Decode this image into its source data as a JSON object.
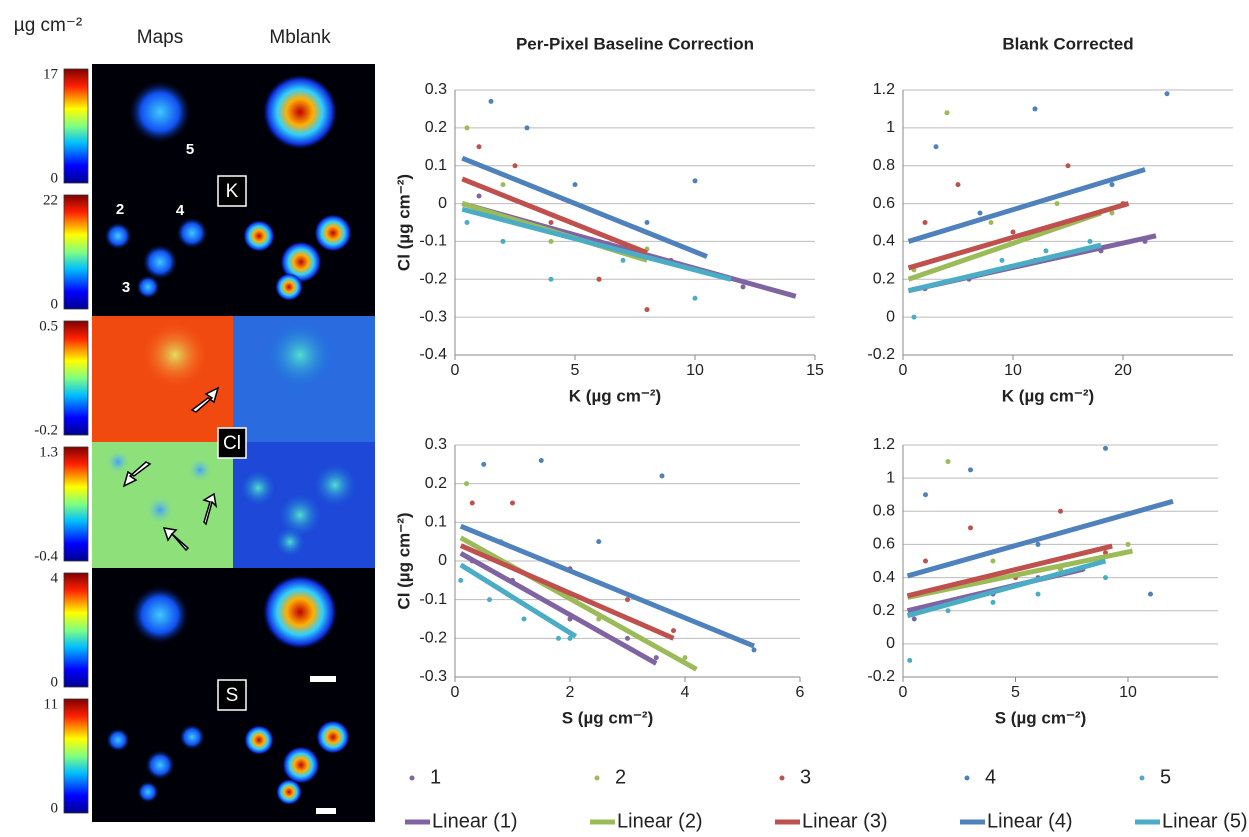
{
  "maps": {
    "unit": "µg cm⁻²",
    "columns": [
      "Maps",
      "Mblank"
    ],
    "colorbar_ranges": [
      [
        17,
        0
      ],
      [
        22,
        0
      ],
      [
        0.5,
        -0.2
      ],
      [
        1.3,
        -0.4
      ],
      [
        4,
        0
      ],
      [
        11,
        0
      ]
    ],
    "elements": [
      "K",
      "Cl",
      "S"
    ],
    "cell_labels": [
      "5",
      "2",
      "4",
      "3"
    ]
  },
  "legend": {
    "markers": [
      "1",
      "2",
      "3",
      "4",
      "5"
    ],
    "lines": [
      "Linear (1)",
      "Linear (2)",
      "Linear (3)",
      "Linear (4)",
      "Linear (5)"
    ],
    "colors": [
      "#8064a2",
      "#9bbb59",
      "#c0504d",
      "#4f81bd",
      "#4bacc6"
    ]
  },
  "chart_data": [
    {
      "type": "scatter",
      "title": "Per-Pixel Baseline Correction",
      "x_label": "K (µg cm⁻²)",
      "y_label": "Cl (µg cm⁻²)",
      "xlim": [
        0,
        15
      ],
      "ylim": [
        -0.4,
        0.3
      ],
      "xticks": [
        0,
        5,
        10,
        15
      ],
      "yticks": [
        0.3,
        0.2,
        0.1,
        0,
        -0.1,
        -0.2,
        -0.3,
        -0.4
      ],
      "grid": true,
      "series": [
        {
          "x": [
            1,
            3,
            6,
            9,
            12
          ],
          "values": [
            0.02,
            -0.05,
            -0.1,
            -0.15,
            -0.22
          ]
        },
        {
          "x": [
            0.5,
            2,
            4,
            6,
            8
          ],
          "values": [
            0.2,
            0.05,
            -0.1,
            -0.2,
            -0.12
          ]
        },
        {
          "x": [
            1,
            2.5,
            4,
            6,
            8
          ],
          "values": [
            0.15,
            0.1,
            -0.05,
            -0.2,
            -0.28
          ]
        },
        {
          "x": [
            1.5,
            3,
            5,
            8,
            10
          ],
          "values": [
            0.27,
            0.2,
            0.05,
            -0.05,
            0.06
          ]
        },
        {
          "x": [
            0.5,
            2,
            4,
            7,
            10
          ],
          "values": [
            -0.05,
            -0.1,
            -0.2,
            -0.15,
            -0.25
          ]
        }
      ],
      "trendlines": [
        {
          "x": [
            0.3,
            14.2
          ],
          "values": [
            0.0,
            -0.245
          ]
        },
        {
          "x": [
            0.3,
            8
          ],
          "values": [
            0.0,
            -0.15
          ]
        },
        {
          "x": [
            0.3,
            8
          ],
          "values": [
            0.065,
            -0.13
          ]
        },
        {
          "x": [
            0.3,
            10.5
          ],
          "values": [
            0.12,
            -0.14
          ]
        },
        {
          "x": [
            0.3,
            11.5
          ],
          "values": [
            -0.015,
            -0.2
          ]
        }
      ]
    },
    {
      "type": "scatter",
      "title": "Blank Corrected",
      "x_label": "K (µg cm⁻²)",
      "xlim": [
        0,
        30
      ],
      "ylim": [
        -0.2,
        1.2
      ],
      "xticks": [
        0,
        10,
        20
      ],
      "yticks": [
        1.2,
        1,
        0.8,
        0.6,
        0.4,
        0.2,
        0,
        -0.2
      ],
      "grid": true,
      "series": [
        {
          "x": [
            2,
            6,
            12,
            18,
            22
          ],
          "values": [
            0.15,
            0.2,
            0.3,
            0.35,
            0.4
          ]
        },
        {
          "x": [
            1,
            4,
            8,
            14,
            19
          ],
          "values": [
            0.25,
            1.08,
            0.5,
            0.6,
            0.55
          ]
        },
        {
          "x": [
            2,
            5,
            10,
            15,
            20
          ],
          "values": [
            0.5,
            0.7,
            0.45,
            0.8,
            0.6
          ]
        },
        {
          "x": [
            3,
            7,
            12,
            19,
            24
          ],
          "values": [
            0.9,
            0.55,
            1.1,
            0.7,
            1.18
          ]
        },
        {
          "x": [
            1,
            5,
            9,
            13,
            17
          ],
          "values": [
            0.0,
            0.2,
            0.3,
            0.35,
            0.4
          ]
        }
      ],
      "trendlines": [
        {
          "x": [
            0.5,
            23
          ],
          "values": [
            0.14,
            0.43
          ]
        },
        {
          "x": [
            0.5,
            18
          ],
          "values": [
            0.2,
            0.55
          ]
        },
        {
          "x": [
            0.5,
            20.5
          ],
          "values": [
            0.26,
            0.6
          ]
        },
        {
          "x": [
            0.5,
            22
          ],
          "values": [
            0.4,
            0.78
          ]
        },
        {
          "x": [
            0.5,
            18
          ],
          "values": [
            0.14,
            0.38
          ]
        }
      ]
    },
    {
      "type": "scatter",
      "x_label": "S (µg cm⁻²)",
      "y_label": "Cl (µg cm⁻²)",
      "xlim": [
        0,
        6
      ],
      "ylim": [
        -0.3,
        0.3
      ],
      "xticks": [
        0,
        2,
        4,
        6
      ],
      "yticks": [
        0.3,
        0.2,
        0.1,
        0,
        -0.1,
        -0.2,
        -0.3
      ],
      "grid": true,
      "series": [
        {
          "x": [
            0.3,
            1,
            2,
            3,
            3.5
          ],
          "values": [
            0.0,
            -0.05,
            -0.15,
            -0.2,
            -0.25
          ]
        },
        {
          "x": [
            0.2,
            0.8,
            1.5,
            2.5,
            4
          ],
          "values": [
            0.2,
            0.05,
            -0.05,
            -0.15,
            -0.25
          ]
        },
        {
          "x": [
            0.3,
            1,
            2,
            3,
            3.8
          ],
          "values": [
            0.15,
            0.15,
            -0.02,
            -0.1,
            -0.18
          ]
        },
        {
          "x": [
            0.5,
            1.5,
            2.5,
            3.6,
            5.2
          ],
          "values": [
            0.25,
            0.26,
            0.05,
            0.22,
            -0.23
          ]
        },
        {
          "x": [
            0.1,
            0.6,
            1.2,
            1.8,
            2
          ],
          "values": [
            -0.05,
            -0.1,
            -0.15,
            -0.2,
            -0.2
          ]
        }
      ],
      "trendlines": [
        {
          "x": [
            0.1,
            3.5
          ],
          "values": [
            0.02,
            -0.265
          ]
        },
        {
          "x": [
            0.1,
            4.2
          ],
          "values": [
            0.06,
            -0.28
          ]
        },
        {
          "x": [
            0.1,
            3.8
          ],
          "values": [
            0.04,
            -0.2
          ]
        },
        {
          "x": [
            0.1,
            5.2
          ],
          "values": [
            0.09,
            -0.22
          ]
        },
        {
          "x": [
            0.1,
            2.1
          ],
          "values": [
            -0.01,
            -0.195
          ]
        }
      ]
    },
    {
      "type": "scatter",
      "x_label": "S (µg cm⁻²)",
      "xlim": [
        0,
        14
      ],
      "ylim": [
        -0.2,
        1.2
      ],
      "xticks": [
        0,
        5,
        10
      ],
      "yticks": [
        1.2,
        1,
        0.8,
        0.6,
        0.4,
        0.2,
        0,
        -0.2
      ],
      "grid": true,
      "series": [
        {
          "x": [
            0.5,
            2,
            4,
            6,
            8
          ],
          "values": [
            0.15,
            0.25,
            0.3,
            0.4,
            0.45
          ]
        },
        {
          "x": [
            0.5,
            2,
            4,
            7,
            10
          ],
          "values": [
            0.2,
            1.1,
            0.5,
            0.45,
            0.6
          ]
        },
        {
          "x": [
            1,
            3,
            5,
            7,
            9
          ],
          "values": [
            0.5,
            0.7,
            0.4,
            0.8,
            0.55
          ]
        },
        {
          "x": [
            1,
            3,
            6,
            9,
            11
          ],
          "values": [
            0.9,
            1.05,
            0.6,
            1.18,
            0.3
          ]
        },
        {
          "x": [
            0.3,
            2,
            4,
            6,
            9
          ],
          "values": [
            -0.1,
            0.2,
            0.25,
            0.3,
            0.4
          ]
        }
      ],
      "trendlines": [
        {
          "x": [
            0.2,
            8
          ],
          "values": [
            0.2,
            0.45
          ]
        },
        {
          "x": [
            0.2,
            10.2
          ],
          "values": [
            0.28,
            0.56
          ]
        },
        {
          "x": [
            0.2,
            9.3
          ],
          "values": [
            0.29,
            0.59
          ]
        },
        {
          "x": [
            0.2,
            12
          ],
          "values": [
            0.41,
            0.86
          ]
        },
        {
          "x": [
            0.2,
            9
          ],
          "values": [
            0.17,
            0.5
          ]
        }
      ]
    }
  ]
}
